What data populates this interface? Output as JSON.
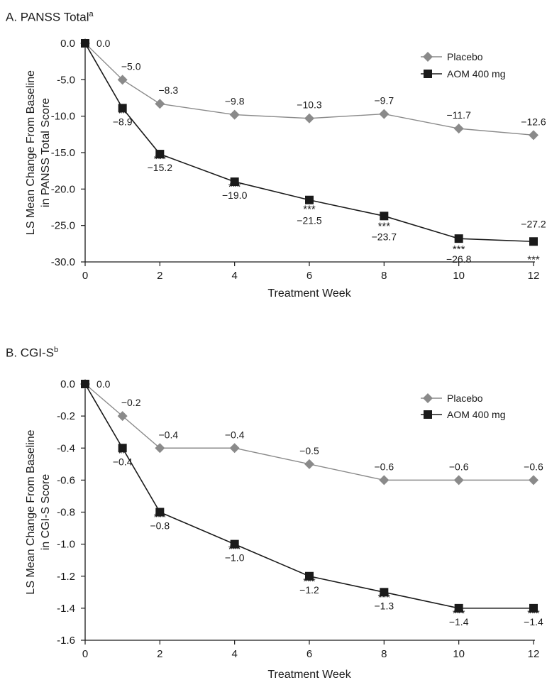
{
  "chart_data": [
    {
      "type": "line",
      "panel_label": "A. PANSS Total",
      "panel_sup": "a",
      "ylabel_lines": [
        "LS Mean Change From Baseline",
        "in PANSS Total Score"
      ],
      "xlabel": "Treatment Week",
      "x": [
        0,
        1,
        2,
        4,
        6,
        8,
        10,
        12
      ],
      "xticks": [
        "0",
        "2",
        "4",
        "6",
        "8",
        "10",
        "12"
      ],
      "yticks": [
        "0.0",
        "-5.0",
        "-10.0",
        "-15.0",
        "-20.0",
        "-25.0",
        "-30.0"
      ],
      "ylim": [
        -30,
        0
      ],
      "grid": false,
      "legend_position": "top-right",
      "series": [
        {
          "name": "Placebo",
          "color": "#8a8a8a",
          "marker": "diamond",
          "values": [
            0.0,
            -5.0,
            -8.3,
            -9.8,
            -10.3,
            -9.7,
            -11.7,
            -12.6
          ],
          "labels": [
            "",
            "−5.0",
            "−8.3",
            "−9.8",
            "−10.3",
            "−9.7",
            "−11.7",
            "−12.6"
          ],
          "stars": [
            "",
            "",
            "",
            "",
            "",
            "",
            "",
            ""
          ]
        },
        {
          "name": "AOM 400 mg",
          "color": "#1a1a1a",
          "marker": "square",
          "values": [
            0.0,
            -8.9,
            -15.2,
            -19.0,
            -21.5,
            -23.7,
            -26.8,
            -27.2
          ],
          "labels": [
            "0.0",
            "−8.9",
            "−15.2",
            "−19.0",
            "−21.5",
            "−23.7",
            "−26.8",
            "−27.2"
          ],
          "stars": [
            "",
            "**",
            "***",
            "***",
            "***",
            "***",
            "***",
            "***"
          ]
        }
      ]
    },
    {
      "type": "line",
      "panel_label": "B. CGI-S",
      "panel_sup": "b",
      "ylabel_lines": [
        "LS Mean Change From Baseline",
        "in CGI-S Score"
      ],
      "xlabel": "Treatment Week",
      "x": [
        0,
        1,
        2,
        4,
        6,
        8,
        10,
        12
      ],
      "xticks": [
        "0",
        "2",
        "4",
        "6",
        "8",
        "10",
        "12"
      ],
      "yticks": [
        "0.0",
        "-0.2",
        "-0.4",
        "-0.6",
        "-0.8",
        "-1.0",
        "-1.2",
        "-1.4",
        "-1.6"
      ],
      "ylim": [
        -1.6,
        0
      ],
      "grid": false,
      "legend_position": "top-right",
      "series": [
        {
          "name": "Placebo",
          "color": "#8a8a8a",
          "marker": "diamond",
          "values": [
            0.0,
            -0.2,
            -0.4,
            -0.4,
            -0.5,
            -0.6,
            -0.6,
            -0.6
          ],
          "labels": [
            "",
            "−0.2",
            "−0.4",
            "−0.4",
            "−0.5",
            "−0.6",
            "−0.6",
            "−0.6"
          ],
          "stars": [
            "",
            "",
            "",
            "",
            "",
            "",
            "",
            ""
          ]
        },
        {
          "name": "AOM 400 mg",
          "color": "#1a1a1a",
          "marker": "square",
          "values": [
            0.0,
            -0.4,
            -0.8,
            -1.0,
            -1.2,
            -1.3,
            -1.4,
            -1.4
          ],
          "labels": [
            "0.0",
            "−0.4",
            "−0.8",
            "−1.0",
            "−1.2",
            "−1.3",
            "−1.4",
            "−1.4"
          ],
          "stars": [
            "",
            "**",
            "***",
            "***",
            "***",
            "***",
            "***",
            "***"
          ]
        }
      ]
    }
  ]
}
